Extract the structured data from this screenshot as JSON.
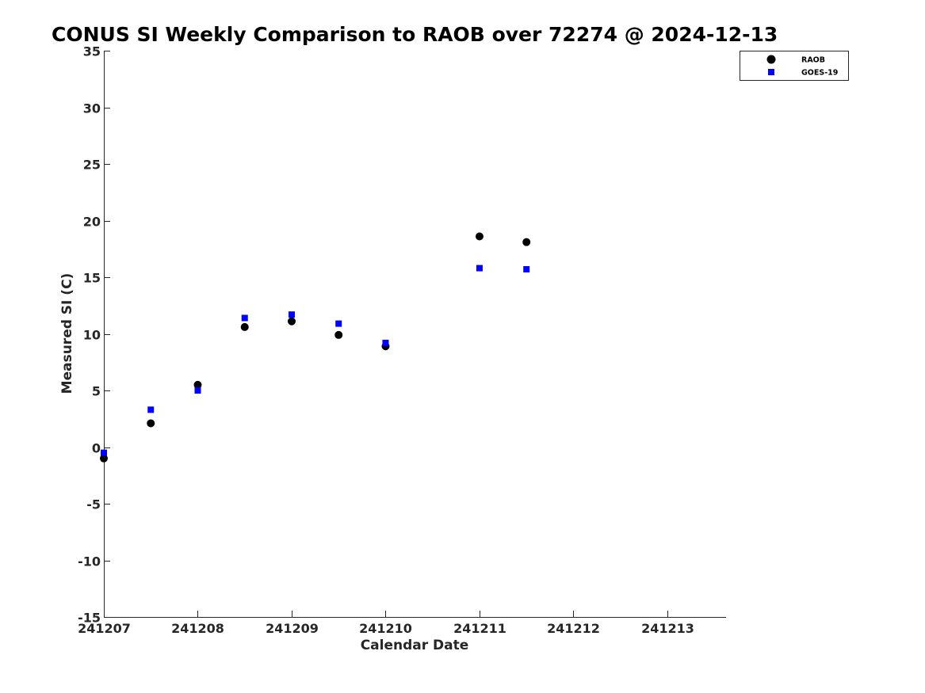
{
  "chart_data": {
    "type": "scatter",
    "title": "CONUS SI Weekly Comparison to RAOB over 72274 @ 2024-12-13",
    "xlabel": "Calendar Date",
    "ylabel": "Measured SI (C)",
    "xlim": [
      "2024-12-07 00:00",
      "2024-12-13 15:00"
    ],
    "ylim": [
      -15,
      35
    ],
    "x_ticks": [
      {
        "date": "2024-12-07",
        "label": "241207"
      },
      {
        "date": "2024-12-08",
        "label": "241208"
      },
      {
        "date": "2024-12-09",
        "label": "241209"
      },
      {
        "date": "2024-12-10",
        "label": "241210"
      },
      {
        "date": "2024-12-11",
        "label": "241211"
      },
      {
        "date": "2024-12-12",
        "label": "241212"
      },
      {
        "date": "2024-12-13",
        "label": "241213"
      }
    ],
    "y_ticks": [
      "35",
      "30",
      "25",
      "20",
      "15",
      "10",
      "5",
      "0",
      "-5",
      "-10",
      "-15"
    ],
    "grid": false,
    "legend_position": "top-right",
    "series": [
      {
        "name": "RAOB",
        "marker": "circle",
        "color": "#000000",
        "points": [
          {
            "x": "2024-12-07 00:00",
            "y": -1.0
          },
          {
            "x": "2024-12-07 12:00",
            "y": 2.1
          },
          {
            "x": "2024-12-08 00:00",
            "y": 5.5
          },
          {
            "x": "2024-12-08 12:00",
            "y": 10.6
          },
          {
            "x": "2024-12-09 00:00",
            "y": 11.1
          },
          {
            "x": "2024-12-09 12:00",
            "y": 9.9
          },
          {
            "x": "2024-12-10 00:00",
            "y": 8.9
          },
          {
            "x": "2024-12-11 00:00",
            "y": 18.6
          },
          {
            "x": "2024-12-11 12:00",
            "y": 18.1
          }
        ]
      },
      {
        "name": "GOES-19",
        "marker": "square",
        "color": "#0000ff",
        "points": [
          {
            "x": "2024-12-07 00:00",
            "y": -0.5
          },
          {
            "x": "2024-12-07 12:00",
            "y": 3.3
          },
          {
            "x": "2024-12-08 00:00",
            "y": 5.0
          },
          {
            "x": "2024-12-08 12:00",
            "y": 11.4
          },
          {
            "x": "2024-12-09 00:00",
            "y": 11.7
          },
          {
            "x": "2024-12-09 12:00",
            "y": 10.9
          },
          {
            "x": "2024-12-10 00:00",
            "y": 9.2
          },
          {
            "x": "2024-12-11 00:00",
            "y": 15.8
          },
          {
            "x": "2024-12-11 12:00",
            "y": 15.7
          }
        ]
      }
    ]
  }
}
